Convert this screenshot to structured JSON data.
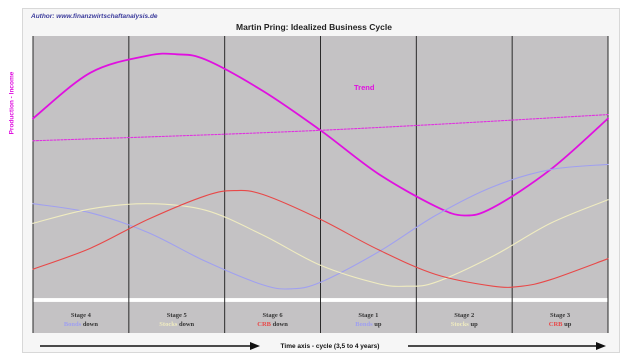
{
  "author": "Author: www.finanzwirtschaftanalysis.de",
  "colors": {
    "panel": "#c4c2c4",
    "bonds": "#a0a0f0",
    "stocks": "#f0ecc0",
    "crb": "#e84848",
    "cycle": "#e010e0",
    "trend": "#e030e0"
  },
  "chart_data": {
    "type": "line",
    "title": "Martin Pring: Idealized Business Cycle",
    "ylabel": "Production - Income",
    "xlabel": "Time axis - cycle (3,5 to 4 years)",
    "trend_label": "Trend",
    "x_range": [
      0,
      1
    ],
    "y_range": [
      -1,
      1
    ],
    "grid": "vertical stage dividers",
    "series": [
      {
        "key": "cycle",
        "x": [
          0,
          0.1,
          0.2,
          0.25,
          0.3,
          0.4,
          0.5,
          0.6,
          0.7,
          0.75,
          0.8,
          0.9,
          1.0
        ],
        "y": [
          0.37,
          0.72,
          0.85,
          0.86,
          0.82,
          0.58,
          0.28,
          -0.05,
          -0.3,
          -0.37,
          -0.31,
          -0.02,
          0.37
        ]
      },
      {
        "key": "trend",
        "x": [
          0,
          0.5,
          1.0
        ],
        "y": [
          0.2,
          0.28,
          0.4
        ]
      },
      {
        "key": "bonds",
        "x": [
          0,
          0.1,
          0.2,
          0.3,
          0.4,
          0.45,
          0.5,
          0.6,
          0.7,
          0.8,
          0.9,
          1.0
        ],
        "y": [
          -0.28,
          -0.35,
          -0.5,
          -0.72,
          -0.9,
          -0.93,
          -0.88,
          -0.65,
          -0.37,
          -0.15,
          -0.02,
          0.02
        ]
      },
      {
        "key": "stocks",
        "x": [
          0,
          0.1,
          0.2,
          0.3,
          0.4,
          0.5,
          0.6,
          0.65,
          0.7,
          0.8,
          0.9,
          1.0
        ],
        "y": [
          -0.43,
          -0.32,
          -0.28,
          -0.33,
          -0.52,
          -0.75,
          -0.89,
          -0.91,
          -0.88,
          -0.68,
          -0.43,
          -0.25
        ]
      },
      {
        "key": "crb",
        "x": [
          0,
          0.1,
          0.2,
          0.3,
          0.35,
          0.4,
          0.5,
          0.6,
          0.7,
          0.8,
          0.85,
          0.9,
          1.0
        ],
        "y": [
          -0.78,
          -0.62,
          -0.4,
          -0.22,
          -0.18,
          -0.21,
          -0.4,
          -0.63,
          -0.82,
          -0.91,
          -0.91,
          -0.86,
          -0.7
        ]
      }
    ],
    "stages": [
      {
        "label": "Stage 4",
        "asset": "Bonds",
        "dir": "down",
        "asset_key": "bonds"
      },
      {
        "label": "Stage 5",
        "asset": "Stocks",
        "dir": "down",
        "asset_key": "stocks"
      },
      {
        "label": "Stage 6",
        "asset": "CRB",
        "dir": "down",
        "asset_key": "crb"
      },
      {
        "label": "Stage 1",
        "asset": "Bonds",
        "dir": "up",
        "asset_key": "bonds"
      },
      {
        "label": "Stage 2",
        "asset": "Stocks",
        "dir": "up",
        "asset_key": "stocks"
      },
      {
        "label": "Stage 3",
        "asset": "CRB",
        "dir": "up",
        "asset_key": "crb"
      }
    ]
  }
}
